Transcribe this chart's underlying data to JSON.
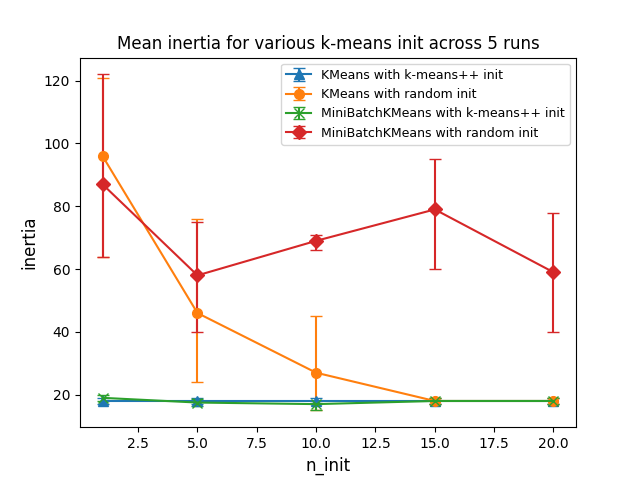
{
  "title": "Mean inertia for various k-means init across 5 runs",
  "xlabel": "n_init",
  "ylabel": "inertia",
  "x": [
    1,
    5,
    10,
    15,
    20
  ],
  "series": [
    {
      "label": "KMeans with k-means++ init",
      "color": "#1f77b4",
      "marker": "^",
      "y": [
        18,
        18,
        18,
        18,
        18
      ],
      "yerr_low": [
        1,
        1,
        1,
        1,
        1
      ],
      "yerr_high": [
        1,
        1,
        1,
        1,
        1
      ]
    },
    {
      "label": "KMeans with random init",
      "color": "#ff7f0e",
      "marker": "o",
      "y": [
        96,
        46,
        27,
        18,
        18
      ],
      "yerr_low": [
        32,
        22,
        12,
        1,
        1
      ],
      "yerr_high": [
        25,
        30,
        18,
        1,
        1
      ]
    },
    {
      "label": "MiniBatchKMeans with k-means++ init",
      "color": "#2ca02c",
      "marker": "x",
      "y": [
        19,
        17.5,
        17,
        18,
        18
      ],
      "yerr_low": [
        1,
        1,
        2,
        1,
        1
      ],
      "yerr_high": [
        1,
        1,
        1,
        1,
        1
      ]
    },
    {
      "label": "MiniBatchKMeans with random init",
      "color": "#d62728",
      "marker": "D",
      "y": [
        87,
        58,
        69,
        79,
        59
      ],
      "yerr_low": [
        23,
        18,
        3,
        19,
        19
      ],
      "yerr_high": [
        35,
        17,
        2,
        16,
        19
      ]
    }
  ],
  "figsize": [
    6.4,
    4.8
  ],
  "dpi": 100,
  "legend_loc": "upper right",
  "legend_fontsize": 9,
  "capsize": 4,
  "linewidth": 1.5,
  "markersize": 7,
  "title_fontsize": 12,
  "xlabel_fontsize": 12,
  "ylabel_fontsize": 12
}
